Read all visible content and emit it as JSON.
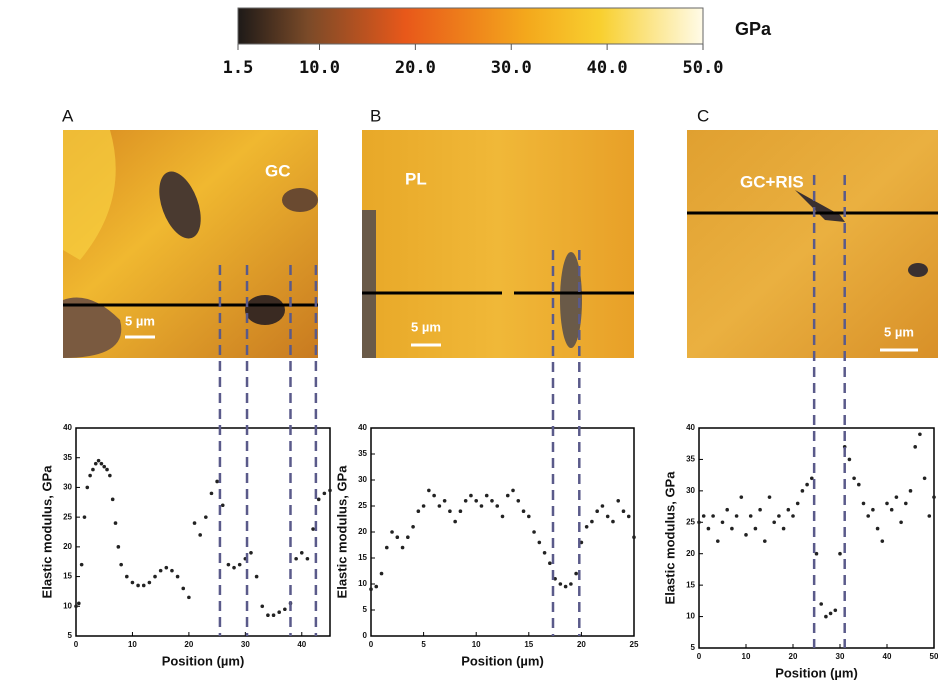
{
  "chart_data": [
    {
      "type": "colorbar",
      "label": "GPa",
      "xlim": [
        1.5,
        50
      ],
      "xticks": [
        1.5,
        {
          "value": 10,
          "label": "10.0"
        },
        {
          "value": 20,
          "label": "20.0"
        },
        {
          "value": 30,
          "label": "30.0"
        },
        {
          "value": 40,
          "label": "40.0"
        },
        {
          "value": 50,
          "label": "50.0"
        }
      ]
    },
    {
      "type": "scatter",
      "panel": "A",
      "image_label": "GC",
      "scale_bar": "5 µm",
      "xlabel": "Position (µm)",
      "ylabel": "Elastic modulus, GPa",
      "xlim": [
        0,
        45
      ],
      "ylim": [
        5,
        40
      ],
      "xticks": [
        0,
        10,
        20,
        30,
        40
      ],
      "yticks": [
        5,
        10,
        15,
        20,
        25,
        30,
        35,
        40
      ],
      "color": "#222222",
      "markers": [
        25.5,
        30.3,
        38,
        42.5
      ],
      "x": [
        0,
        0.5,
        1,
        1.5,
        2,
        2.5,
        3,
        3.5,
        4,
        4.5,
        5,
        5.5,
        6,
        6.5,
        7,
        7.5,
        8,
        9,
        10,
        11,
        12,
        13,
        14,
        15,
        16,
        17,
        18,
        19,
        20,
        21,
        22,
        23,
        24,
        25,
        26,
        27,
        28,
        29,
        30,
        31,
        32,
        33,
        34,
        35,
        36,
        37,
        38,
        39,
        40,
        41,
        42,
        43,
        44,
        45
      ],
      "values": [
        10,
        10.5,
        17,
        25,
        30,
        32,
        33,
        34,
        34.5,
        34,
        33.5,
        33,
        32,
        28,
        24,
        20,
        17,
        15,
        14,
        13.5,
        13.5,
        14,
        15,
        16,
        16.5,
        16,
        15,
        13,
        11.5,
        24,
        22,
        25,
        29,
        31,
        27,
        17,
        16.5,
        17,
        18,
        19,
        15,
        10,
        8.5,
        8.5,
        9,
        9.5,
        10.5,
        18,
        19,
        18,
        23,
        28,
        29,
        29.5
      ]
    },
    {
      "type": "scatter",
      "panel": "B",
      "image_label": "PL",
      "scale_bar": "5 µm",
      "xlabel": "Position (µm)",
      "ylabel": "Elastic modulus, GPa",
      "xlim": [
        0,
        25
      ],
      "ylim": [
        0,
        40
      ],
      "xticks": [
        0,
        5,
        10,
        15,
        20,
        25
      ],
      "yticks": [
        0,
        5,
        10,
        15,
        20,
        25,
        30,
        35,
        40
      ],
      "color": "#222222",
      "markers": [
        17.3,
        19.8
      ],
      "x": [
        0,
        0.5,
        1,
        1.5,
        2,
        2.5,
        3,
        3.5,
        4,
        4.5,
        5,
        5.5,
        6,
        6.5,
        7,
        7.5,
        8,
        8.5,
        9,
        9.5,
        10,
        10.5,
        11,
        11.5,
        12,
        12.5,
        13,
        13.5,
        14,
        14.5,
        15,
        15.5,
        16,
        16.5,
        17,
        17.5,
        18,
        18.5,
        19,
        19.5,
        20,
        20.5,
        21,
        21.5,
        22,
        22.5,
        23,
        23.5,
        24,
        24.5,
        25
      ],
      "values": [
        9,
        9.5,
        12,
        17,
        20,
        19,
        17,
        19,
        21,
        24,
        25,
        28,
        27,
        25,
        26,
        24,
        22,
        24,
        26,
        27,
        26,
        25,
        27,
        26,
        25,
        23,
        27,
        28,
        26,
        24,
        23,
        20,
        18,
        16,
        14,
        11,
        10,
        9.5,
        10,
        12,
        18,
        21,
        22,
        24,
        25,
        23,
        22,
        26,
        24,
        23,
        19
      ]
    },
    {
      "type": "scatter",
      "panel": "C",
      "image_label": "GC+RIS",
      "scale_bar": "5 µm",
      "xlabel": "Position (µm)",
      "ylabel": "Elastic modulus, GPa",
      "xlim": [
        0,
        50
      ],
      "ylim": [
        5,
        40
      ],
      "xticks": [
        0,
        10,
        20,
        30,
        40,
        50
      ],
      "yticks": [
        5,
        10,
        15,
        20,
        25,
        30,
        35,
        40
      ],
      "color": "#222222",
      "markers": [
        24.5,
        31
      ],
      "x": [
        0,
        1,
        2,
        3,
        4,
        5,
        6,
        7,
        8,
        9,
        10,
        11,
        12,
        13,
        14,
        15,
        16,
        17,
        18,
        19,
        20,
        21,
        22,
        23,
        24,
        25,
        26,
        27,
        28,
        29,
        30,
        31,
        32,
        33,
        34,
        35,
        36,
        37,
        38,
        39,
        40,
        41,
        42,
        43,
        44,
        45,
        46,
        47,
        48,
        49,
        50
      ],
      "values": [
        25,
        26,
        24,
        26,
        22,
        25,
        27,
        24,
        26,
        29,
        23,
        26,
        24,
        27,
        22,
        29,
        25,
        26,
        24,
        27,
        26,
        28,
        30,
        31,
        32,
        20,
        12,
        10,
        10.5,
        11,
        20,
        37,
        35,
        32,
        31,
        28,
        26,
        27,
        24,
        22,
        28,
        27,
        29,
        25,
        28,
        30,
        37,
        39,
        32,
        26,
        29
      ]
    }
  ]
}
